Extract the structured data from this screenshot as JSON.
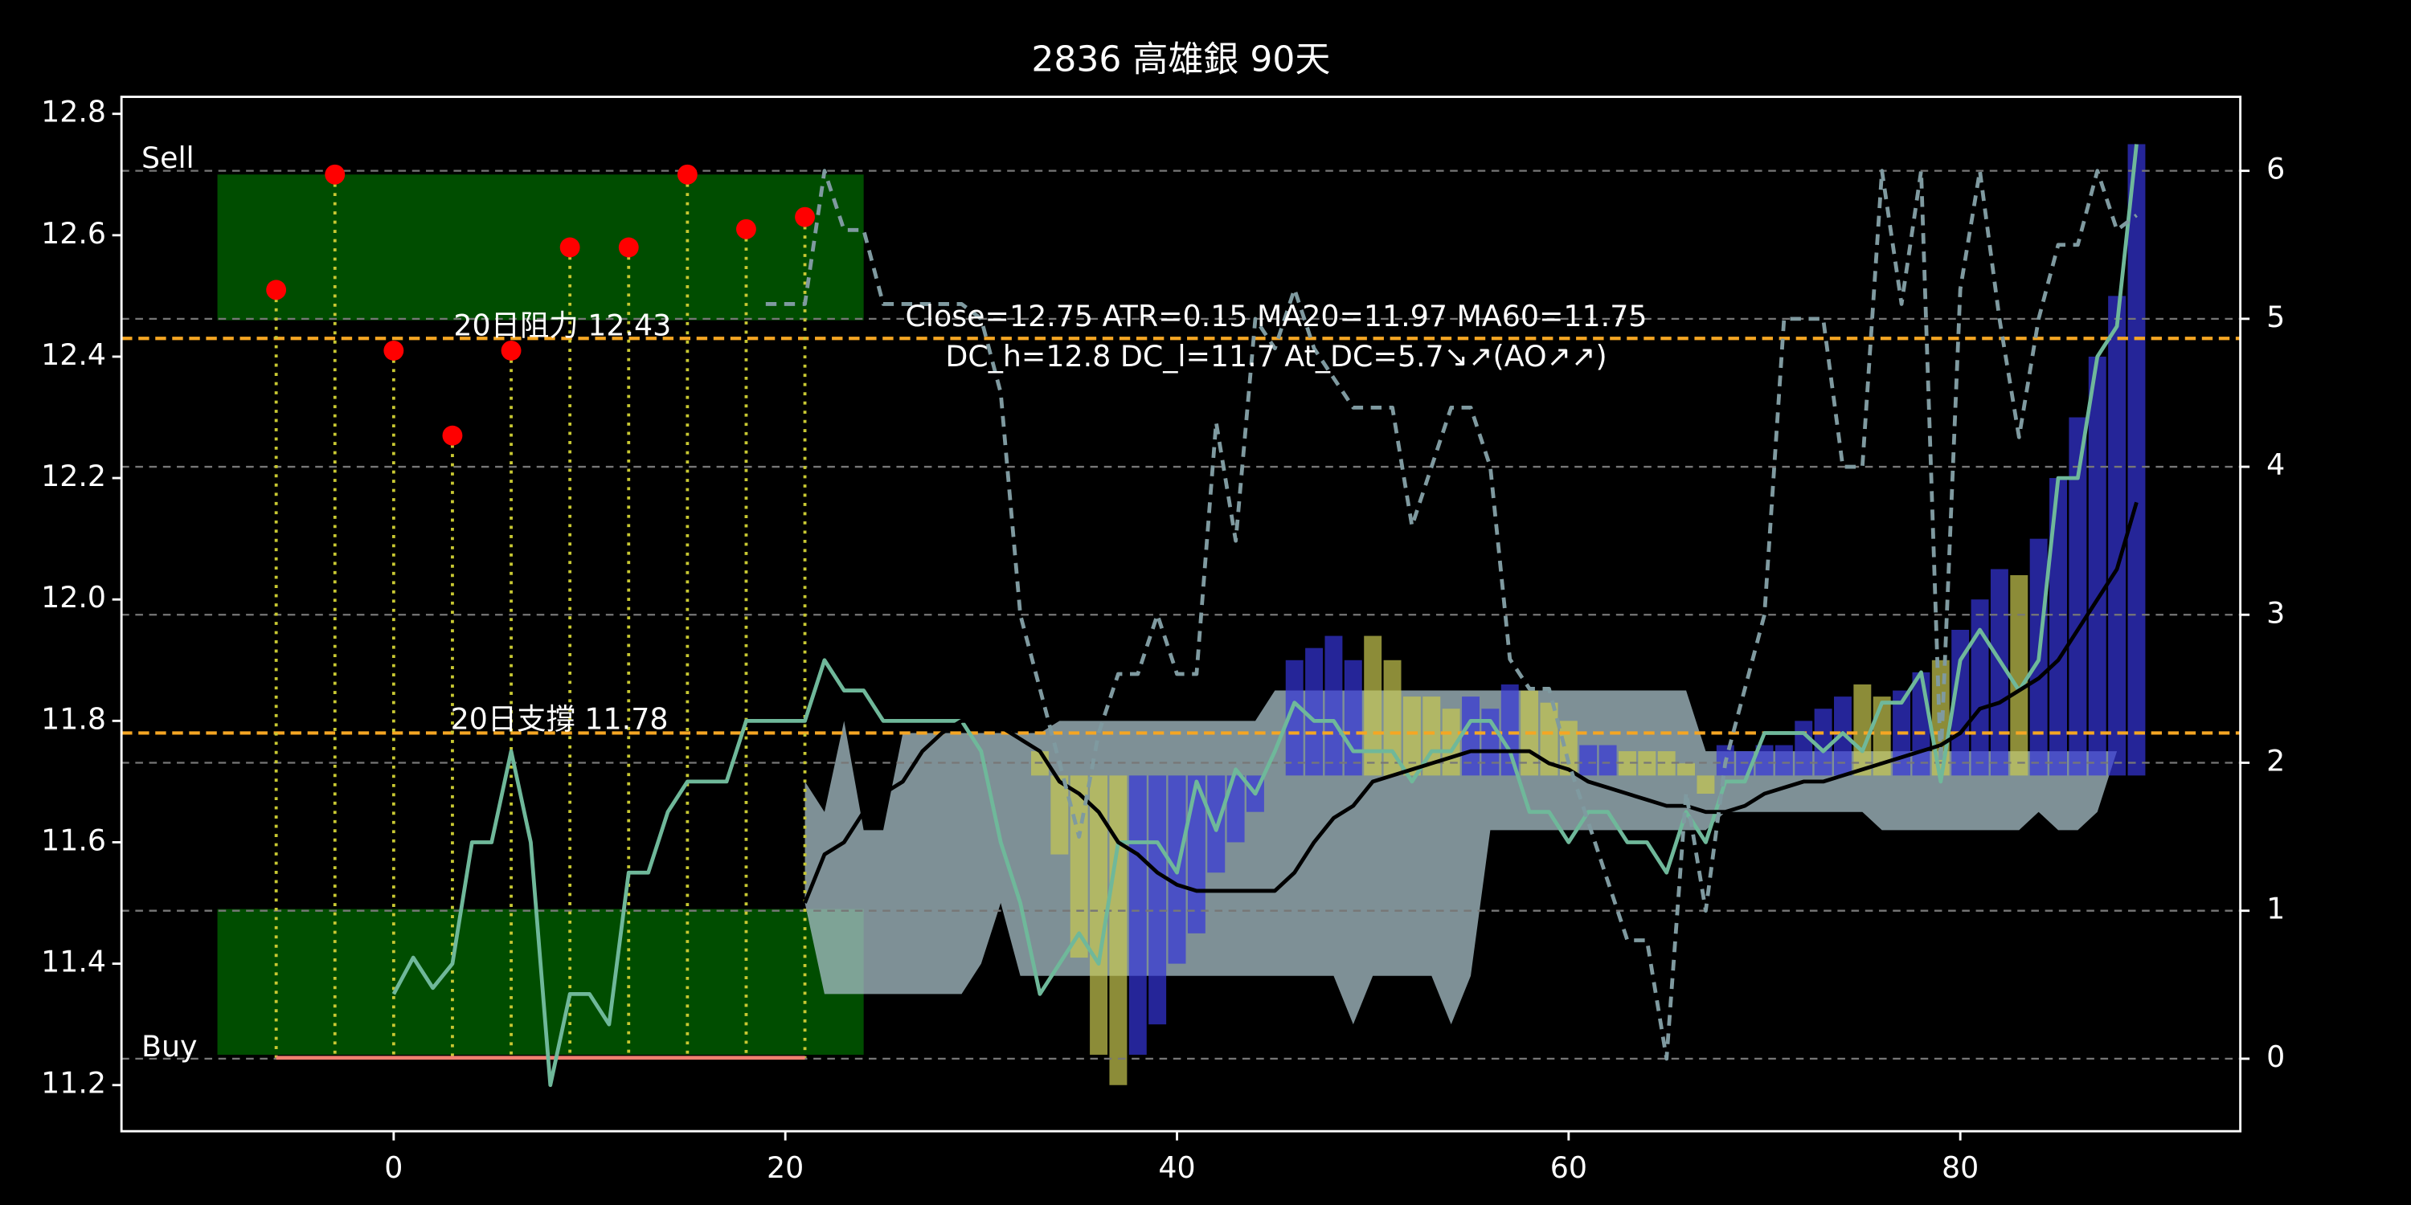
{
  "chart_data": {
    "type": "line",
    "title": "2836 高雄銀 90天",
    "annotations": {
      "sell": "Sell",
      "buy": "Buy",
      "resistance": "20日阻力 12.43",
      "support": "20日支撐 11.78",
      "info1": "Close=12.75 ATR=0.15 MA20=11.97 MA60=11.75",
      "info2": "DC_h=12.8 DC_l=11.7 At_DC=5.7↘↗(AO↗↗)"
    },
    "xlim": [
      -13.9,
      94.3
    ],
    "ylim": [
      11.124,
      12.828
    ],
    "y2lim": [
      -0.49,
      6.5
    ],
    "xticks": [
      0,
      20,
      40,
      60,
      80
    ],
    "yticks": [
      11.2,
      11.4,
      11.6,
      11.8,
      {
        "value": 12,
        "label": "12.0"
      },
      12.2,
      12.4,
      12.6,
      12.8
    ],
    "y2ticks": [
      0,
      1,
      2,
      3,
      4,
      5,
      6
    ],
    "grid": true,
    "hlines": [
      {
        "value": 12.43,
        "color": "#f5a623"
      },
      {
        "value": 11.78,
        "color": "#f5a623"
      }
    ],
    "zones": [
      {
        "x": [
          -9,
          24
        ],
        "y": [
          12.46,
          12.7
        ],
        "color": "#004d00"
      },
      {
        "x": [
          -9,
          24
        ],
        "y": [
          11.25,
          11.49
        ],
        "color": "#004d00"
      }
    ],
    "signals": {
      "x": [
        -6,
        -3,
        0,
        3,
        6,
        9,
        12,
        15,
        18,
        21
      ],
      "y": [
        12.51,
        12.7,
        12.41,
        12.27,
        12.41,
        12.58,
        12.58,
        12.7,
        12.61,
        12.63
      ],
      "color": "#ff0000",
      "stem_color": "#c8c832",
      "base": 11.245
    },
    "floor_line": {
      "x": [
        -6,
        21
      ],
      "y": 11.245,
      "color": "#f08070"
    },
    "x": [
      0,
      1,
      2,
      3,
      4,
      5,
      6,
      7,
      8,
      9,
      10,
      11,
      12,
      13,
      14,
      15,
      16,
      17,
      18,
      19,
      20,
      21,
      22,
      23,
      24,
      25,
      26,
      27,
      28,
      29,
      30,
      31,
      32,
      33,
      34,
      35,
      36,
      37,
      38,
      39,
      40,
      41,
      42,
      43,
      44,
      45,
      46,
      47,
      48,
      49,
      50,
      51,
      52,
      53,
      54,
      55,
      56,
      57,
      58,
      59,
      60,
      61,
      62,
      63,
      64,
      65,
      66,
      67,
      68,
      69,
      70,
      71,
      72,
      73,
      74,
      75,
      76,
      77,
      78,
      79,
      80,
      81,
      82,
      83,
      84,
      85,
      86,
      87,
      88,
      89
    ],
    "band": {
      "color": "#a8c0c8",
      "upper": [
        null,
        null,
        null,
        null,
        null,
        null,
        null,
        null,
        null,
        null,
        null,
        null,
        null,
        null,
        null,
        null,
        null,
        null,
        null,
        null,
        null,
        11.7,
        11.65,
        11.8,
        11.62,
        11.62,
        11.78,
        11.78,
        11.78,
        11.78,
        11.78,
        11.78,
        11.78,
        11.78,
        11.8,
        11.8,
        11.8,
        11.8,
        11.8,
        11.8,
        11.8,
        11.8,
        11.8,
        11.8,
        11.8,
        11.85,
        11.85,
        11.85,
        11.85,
        11.85,
        11.85,
        11.85,
        11.85,
        11.85,
        11.85,
        11.85,
        11.85,
        11.85,
        11.85,
        11.85,
        11.85,
        11.85,
        11.85,
        11.85,
        11.85,
        11.85,
        11.85,
        11.75,
        11.75,
        11.75,
        11.75,
        11.75,
        11.75,
        11.75,
        11.75,
        11.75,
        11.75,
        11.75,
        11.75,
        11.75,
        11.75,
        11.75,
        11.75,
        11.75,
        11.75,
        11.75,
        11.75,
        11.75,
        11.75,
        11.75
      ],
      "lower": [
        null,
        null,
        null,
        null,
        null,
        null,
        null,
        null,
        null,
        null,
        null,
        null,
        null,
        null,
        null,
        null,
        null,
        null,
        null,
        null,
        null,
        11.5,
        11.35,
        11.35,
        11.35,
        11.35,
        11.35,
        11.35,
        11.35,
        11.35,
        11.4,
        11.5,
        11.38,
        11.38,
        11.38,
        11.38,
        11.38,
        11.38,
        11.38,
        11.38,
        11.38,
        11.38,
        11.38,
        11.38,
        11.38,
        11.38,
        11.38,
        11.38,
        11.38,
        11.3,
        11.38,
        11.38,
        11.38,
        11.38,
        11.3,
        11.38,
        11.62,
        11.62,
        11.62,
        11.62,
        11.62,
        11.62,
        11.62,
        11.62,
        11.62,
        11.62,
        11.62,
        11.62,
        11.65,
        11.65,
        11.65,
        11.65,
        11.65,
        11.65,
        11.65,
        11.65,
        11.62,
        11.62,
        11.62,
        11.62,
        11.62,
        11.62,
        11.62,
        11.62,
        11.65,
        11.62,
        11.62,
        11.65,
        11.75,
        11.75
      ]
    },
    "bars": {
      "base": 11.71,
      "series": [
        {
          "color": "#c8c850",
          "x": [
            33,
            34,
            35,
            36,
            37,
            50,
            51,
            52,
            53,
            54,
            58,
            59,
            60,
            63,
            64,
            65,
            66,
            67,
            75,
            76,
            79,
            83
          ],
          "values": [
            11.75,
            11.58,
            11.41,
            11.25,
            11.2,
            11.94,
            11.9,
            11.84,
            11.84,
            11.82,
            11.85,
            11.83,
            11.8,
            11.75,
            11.75,
            11.75,
            11.73,
            11.68,
            11.86,
            11.84,
            11.9,
            12.04
          ]
        },
        {
          "color": "#3434d8",
          "x": [
            38,
            39,
            40,
            41,
            42,
            43,
            44,
            46,
            47,
            48,
            49,
            55,
            56,
            57,
            61,
            62,
            68,
            69,
            70,
            71,
            72,
            73,
            74,
            77,
            78,
            80,
            81,
            82,
            84,
            85,
            86,
            87,
            88,
            89
          ],
          "values": [
            11.25,
            11.3,
            11.4,
            11.45,
            11.55,
            11.6,
            11.65,
            11.9,
            11.92,
            11.94,
            11.9,
            11.84,
            11.82,
            11.86,
            11.76,
            11.76,
            11.76,
            11.75,
            11.76,
            11.76,
            11.8,
            11.82,
            11.84,
            11.85,
            11.88,
            11.95,
            12.0,
            12.05,
            12.1,
            12.2,
            12.3,
            12.4,
            12.5,
            12.75
          ]
        }
      ]
    },
    "series": [
      {
        "color": "#6fb89a",
        "values": [
          11.35,
          11.41,
          11.36,
          11.4,
          11.6,
          11.6,
          11.75,
          11.6,
          11.2,
          11.35,
          11.35,
          11.3,
          11.55,
          11.55,
          11.65,
          11.7,
          11.7,
          11.7,
          11.8,
          11.8,
          11.8,
          11.8,
          11.9,
          11.85,
          11.85,
          11.8,
          11.8,
          11.8,
          11.8,
          11.8,
          11.75,
          11.6,
          11.5,
          11.35,
          11.4,
          11.45,
          11.4,
          11.6,
          11.6,
          11.6,
          11.55,
          11.7,
          11.62,
          11.72,
          11.68,
          11.75,
          11.83,
          11.8,
          11.8,
          11.75,
          11.75,
          11.75,
          11.7,
          11.75,
          11.75,
          11.8,
          11.8,
          11.75,
          11.65,
          11.65,
          11.6,
          11.65,
          11.65,
          11.6,
          11.6,
          11.55,
          11.65,
          11.6,
          11.7,
          11.7,
          11.78,
          11.78,
          11.78,
          11.75,
          11.78,
          11.75,
          11.83,
          11.83,
          11.88,
          11.7,
          11.9,
          11.95,
          11.9,
          11.85,
          11.9,
          12.2,
          12.2,
          12.4,
          12.45,
          12.75
        ]
      },
      {
        "color": "#000000",
        "values": [
          null,
          null,
          null,
          null,
          null,
          null,
          null,
          null,
          null,
          null,
          null,
          null,
          null,
          null,
          null,
          null,
          null,
          null,
          null,
          null,
          null,
          11.5,
          11.58,
          11.6,
          11.65,
          11.68,
          11.7,
          11.75,
          11.78,
          11.8,
          11.8,
          11.79,
          11.77,
          11.75,
          11.7,
          11.68,
          11.65,
          11.6,
          11.58,
          11.55,
          11.53,
          11.52,
          11.52,
          11.52,
          11.52,
          11.52,
          11.55,
          11.6,
          11.64,
          11.66,
          11.7,
          11.71,
          11.72,
          11.73,
          11.74,
          11.75,
          11.75,
          11.75,
          11.75,
          11.73,
          11.72,
          11.7,
          11.69,
          11.68,
          11.67,
          11.66,
          11.66,
          11.65,
          11.65,
          11.66,
          11.68,
          11.69,
          11.7,
          11.7,
          11.71,
          11.72,
          11.73,
          11.74,
          11.75,
          11.76,
          11.78,
          11.82,
          11.83,
          11.85,
          11.87,
          11.9,
          11.95,
          12.0,
          12.05,
          12.16
        ]
      },
      {
        "color": "#7f9aa0",
        "axis": "y2",
        "dashed": true,
        "values": [
          null,
          null,
          null,
          null,
          null,
          null,
          null,
          null,
          null,
          null,
          null,
          null,
          null,
          null,
          null,
          null,
          null,
          null,
          null,
          5.1,
          5.1,
          5.1,
          6.0,
          5.6,
          5.6,
          5.1,
          5.1,
          5.1,
          5.1,
          5.1,
          5.0,
          4.5,
          3.0,
          2.5,
          2.0,
          1.5,
          2.2,
          2.6,
          2.6,
          3.0,
          2.6,
          2.6,
          4.3,
          3.5,
          5.0,
          4.8,
          5.2,
          4.8,
          4.6,
          4.4,
          4.4,
          4.4,
          3.6,
          4.0,
          4.4,
          4.4,
          4.0,
          2.7,
          2.5,
          2.5,
          2.0,
          1.6,
          1.2,
          0.8,
          0.8,
          0.0,
          1.8,
          1.0,
          2.0,
          2.5,
          3.0,
          5.0,
          5.0,
          5.0,
          4.0,
          4.0,
          6.0,
          5.1,
          6.0,
          2.0,
          5.2,
          6.0,
          5.0,
          4.2,
          5.0,
          5.5,
          5.5,
          6.0,
          5.6,
          5.7
        ]
      }
    ]
  }
}
